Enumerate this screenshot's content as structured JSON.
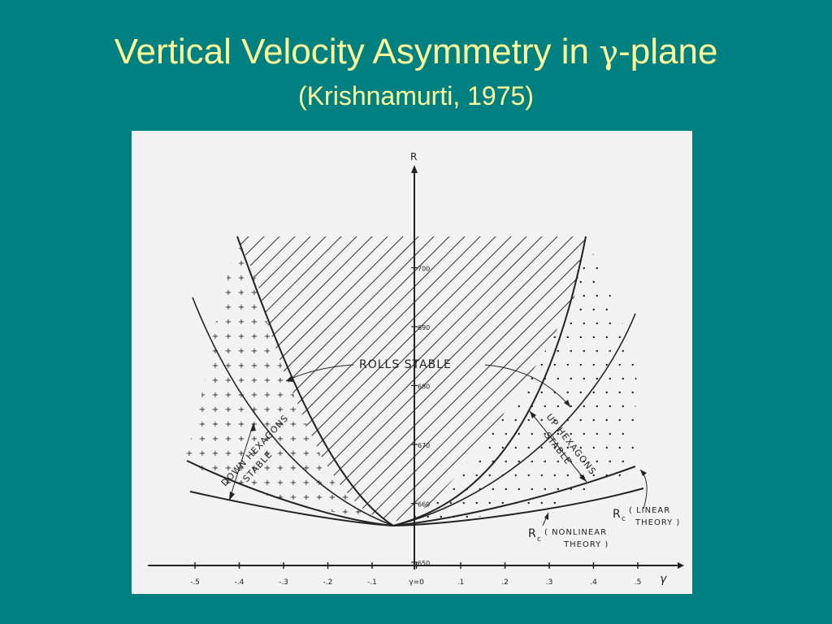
{
  "slide": {
    "title_main": "Vertical Velocity Asymmetry in ",
    "title_symbol": "γ",
    "title_suffix": "-plane",
    "subtitle": "(Krishnamurti, 1975)"
  },
  "figure": {
    "y_axis_label": "R",
    "x_axis_label": "γ",
    "x_ticks": [
      "-.5",
      "-.4",
      "-.3",
      "-.2",
      "-.1",
      "γ=0",
      ".1",
      ".2",
      ".3",
      ".4",
      ".5"
    ],
    "y_ticks": [
      "650",
      "660",
      "670",
      "680",
      "690",
      "700"
    ],
    "region_labels": {
      "rolls": "ROLLS STABLE",
      "down_hex_1": "DOWN HEXAGONS",
      "down_hex_2": "STABLE",
      "up_hex_1": "UP HEXAGONS",
      "up_hex_2": "STABLE"
    },
    "curve_labels": {
      "linear_rc": "R",
      "linear_sub": "c",
      "linear_text_1": "( LINEAR",
      "linear_text_2": "THEORY )",
      "nonlinear_rc": "R",
      "nonlinear_sub": "c",
      "nonlinear_text_1": "( NONLINEAR",
      "nonlinear_text_2": "THEORY )"
    },
    "colors": {
      "background": "#008080",
      "title": "#ffff99",
      "figure_paper": "#f2f2f2",
      "ink": "#222222"
    }
  }
}
